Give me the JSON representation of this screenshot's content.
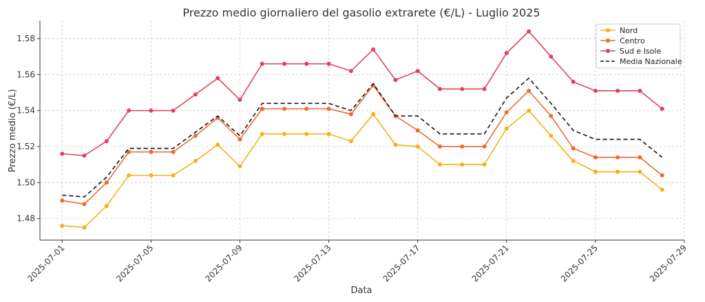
{
  "chart_data": {
    "type": "line",
    "title": "Prezzo medio giornaliero del gasolio extrarete (€/L) - Luglio 2025",
    "xlabel": "Data",
    "ylabel": "Prezzo medio (€/L)",
    "ylim": [
      1.468,
      1.59
    ],
    "xlim": [
      "2025-06-30",
      "2025-07-29"
    ],
    "x_ticks": [
      "2025-07-01",
      "2025-07-05",
      "2025-07-09",
      "2025-07-13",
      "2025-07-17",
      "2025-07-21",
      "2025-07-25",
      "2025-07-29"
    ],
    "y_ticks": [
      1.48,
      1.5,
      1.52,
      1.54,
      1.56,
      1.58
    ],
    "grid": true,
    "legend_position": "top-right",
    "x": [
      "2025-07-01",
      "2025-07-02",
      "2025-07-03",
      "2025-07-04",
      "2025-07-05",
      "2025-07-06",
      "2025-07-07",
      "2025-07-08",
      "2025-07-09",
      "2025-07-10",
      "2025-07-11",
      "2025-07-12",
      "2025-07-13",
      "2025-07-14",
      "2025-07-15",
      "2025-07-16",
      "2025-07-17",
      "2025-07-18",
      "2025-07-19",
      "2025-07-20",
      "2025-07-21",
      "2025-07-22",
      "2025-07-23",
      "2025-07-24",
      "2025-07-25",
      "2025-07-26",
      "2025-07-27",
      "2025-07-28"
    ],
    "series": [
      {
        "name": "Nord",
        "color": "#f5b116",
        "style": "solid-markers",
        "values": [
          1.476,
          1.475,
          1.487,
          1.504,
          1.504,
          1.504,
          1.512,
          1.521,
          1.509,
          1.527,
          1.527,
          1.527,
          1.527,
          1.523,
          1.538,
          1.521,
          1.52,
          1.51,
          1.51,
          1.51,
          1.53,
          1.54,
          1.526,
          1.512,
          1.506,
          1.506,
          1.506,
          1.496
        ]
      },
      {
        "name": "Centro",
        "color": "#ec6a33",
        "style": "solid-markers",
        "values": [
          1.49,
          1.488,
          1.5,
          1.517,
          1.517,
          1.517,
          1.526,
          1.536,
          1.524,
          1.541,
          1.541,
          1.541,
          1.541,
          1.538,
          1.554,
          1.537,
          1.529,
          1.52,
          1.52,
          1.52,
          1.539,
          1.551,
          1.537,
          1.519,
          1.514,
          1.514,
          1.514,
          1.504
        ]
      },
      {
        "name": "Sud e Isole",
        "color": "#e3405e",
        "style": "solid-markers",
        "values": [
          1.516,
          1.515,
          1.523,
          1.54,
          1.54,
          1.54,
          1.549,
          1.558,
          1.546,
          1.566,
          1.566,
          1.566,
          1.566,
          1.562,
          1.574,
          1.557,
          1.562,
          1.552,
          1.552,
          1.552,
          1.572,
          1.584,
          1.57,
          1.556,
          1.551,
          1.551,
          1.551,
          1.541
        ]
      },
      {
        "name": "Media Nazionale",
        "color": "#111111",
        "style": "dashed",
        "values": [
          1.493,
          1.492,
          1.503,
          1.519,
          1.519,
          1.519,
          1.528,
          1.537,
          1.526,
          1.544,
          1.544,
          1.544,
          1.544,
          1.54,
          1.555,
          1.537,
          1.537,
          1.527,
          1.527,
          1.527,
          1.547,
          1.558,
          1.544,
          1.529,
          1.524,
          1.524,
          1.524,
          1.514
        ]
      }
    ]
  }
}
